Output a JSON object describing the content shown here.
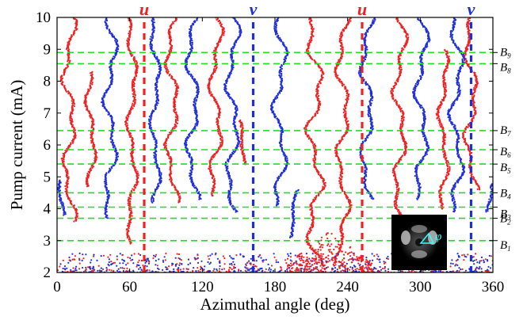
{
  "chart_data": {
    "type": "scatter",
    "title": "",
    "xlabel": "Azimuthal angle (deg)",
    "ylabel": "Pump current (mA)",
    "xlim": [
      0,
      360
    ],
    "ylim": [
      2,
      10
    ],
    "xticks": [
      0,
      60,
      120,
      180,
      240,
      300,
      360
    ],
    "yticks": [
      2,
      3,
      4,
      5,
      6,
      7,
      8,
      9,
      10
    ],
    "grid": false,
    "colors": {
      "red": "#ee2222",
      "blue": "#1f2fd8",
      "green_dashed": "#22dd22"
    },
    "series": [
      {
        "color": "red",
        "tracks": [
          {
            "angle": 10,
            "from": 3.6,
            "to": 10,
            "wiggle": 4
          },
          {
            "angle": 28,
            "from": 4.7,
            "to": 8.3,
            "wiggle": 3
          },
          {
            "angle": 62,
            "from": 2.9,
            "to": 10,
            "wiggle": 3
          },
          {
            "angle": 95,
            "from": 4.2,
            "to": 10,
            "wiggle": 4
          },
          {
            "angle": 131,
            "from": 4.4,
            "to": 10,
            "wiggle": 4
          },
          {
            "angle": 152,
            "from": 5.4,
            "to": 6.8,
            "wiggle": 2
          },
          {
            "angle": 213,
            "from": 2.2,
            "to": 10,
            "wiggle": 5
          },
          {
            "angle": 236,
            "from": 2.3,
            "to": 10,
            "wiggle": 4
          },
          {
            "angle": 283,
            "from": 2.5,
            "to": 10,
            "wiggle": 4
          },
          {
            "angle": 319,
            "from": 4.0,
            "to": 9.0,
            "wiggle": 3
          },
          {
            "angle": 342,
            "from": 4.6,
            "to": 10,
            "wiggle": 4
          }
        ]
      },
      {
        "color": "blue",
        "tracks": [
          {
            "angle": 3,
            "from": 3.8,
            "to": 4.9,
            "wiggle": 2
          },
          {
            "angle": 44,
            "from": 3.7,
            "to": 10,
            "wiggle": 4
          },
          {
            "angle": 81,
            "from": 4.2,
            "to": 10,
            "wiggle": 3
          },
          {
            "angle": 112,
            "from": 4.3,
            "to": 10,
            "wiggle": 4
          },
          {
            "angle": 145,
            "from": 3.9,
            "to": 10,
            "wiggle": 4
          },
          {
            "angle": 184,
            "from": 4.1,
            "to": 10,
            "wiggle": 4
          },
          {
            "angle": 196,
            "from": 3.1,
            "to": 4.6,
            "wiggle": 2
          },
          {
            "angle": 256,
            "from": 4.3,
            "to": 10,
            "wiggle": 4
          },
          {
            "angle": 301,
            "from": 4.3,
            "to": 10,
            "wiggle": 4
          },
          {
            "angle": 330,
            "from": 3.9,
            "to": 10,
            "wiggle": 4
          },
          {
            "angle": 356,
            "from": 3.9,
            "to": 4.8,
            "wiggle": 2
          }
        ]
      }
    ],
    "noise_band": {
      "from": 2.0,
      "to": 2.6
    },
    "modes": [
      {
        "label": "u",
        "angle": 72,
        "color": "#ee2222"
      },
      {
        "label": "v",
        "angle": 162,
        "color": "#1f2fd8"
      },
      {
        "label": "u",
        "angle": 252,
        "color": "#ee2222"
      },
      {
        "label": "v",
        "angle": 342,
        "color": "#1f2fd8"
      }
    ],
    "bands": [
      {
        "letter": "B",
        "sub": "1",
        "current": 3.0
      },
      {
        "letter": "B",
        "sub": "2",
        "current": 3.7
      },
      {
        "letter": "B",
        "sub": "3",
        "current": 4.05
      },
      {
        "letter": "B",
        "sub": "4",
        "current": 4.5
      },
      {
        "letter": "B",
        "sub": "5",
        "current": 5.4
      },
      {
        "letter": "B",
        "sub": "6",
        "current": 5.85
      },
      {
        "letter": "B",
        "sub": "7",
        "current": 6.45
      },
      {
        "letter": "B",
        "sub": "8",
        "current": 8.55
      },
      {
        "letter": "B",
        "sub": "9",
        "current": 8.9
      }
    ],
    "inset": {
      "phi_label": "φ"
    }
  }
}
